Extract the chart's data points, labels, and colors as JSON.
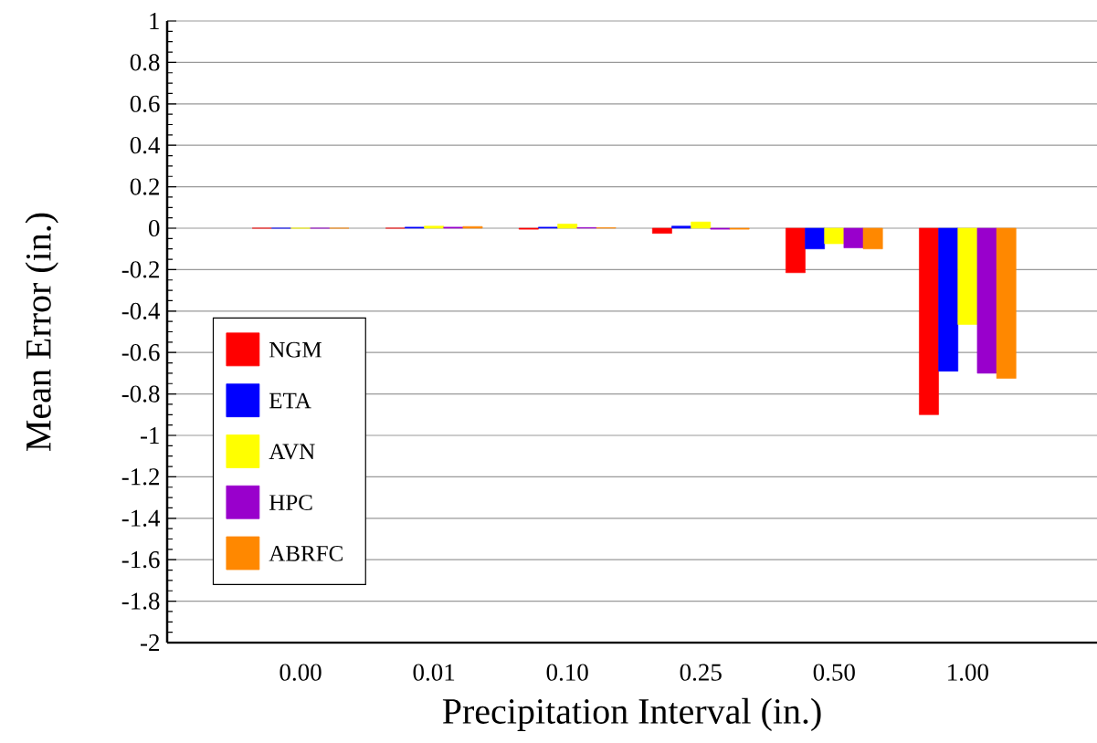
{
  "chart_data": {
    "type": "bar",
    "xlabel": "Precipitation Interval (in.)",
    "ylabel": "Mean Error (in.)",
    "categories": [
      "0.00",
      "0.01",
      "0.10",
      "0.25",
      "0.50",
      "1.00"
    ],
    "series": [
      {
        "name": "NGM",
        "color": "#ff0000",
        "values": [
          0.0,
          0.0,
          -0.005,
          -0.025,
          -0.215,
          -0.9
        ]
      },
      {
        "name": "ETA",
        "color": "#0000ff",
        "values": [
          0.0,
          0.005,
          0.005,
          0.01,
          -0.1,
          -0.69
        ]
      },
      {
        "name": "AVN",
        "color": "#ffff00",
        "values": [
          0.0,
          0.01,
          0.02,
          0.03,
          -0.075,
          -0.465
        ]
      },
      {
        "name": "HPC",
        "color": "#9900cc",
        "values": [
          0.0,
          0.005,
          0.003,
          -0.005,
          -0.095,
          -0.7
        ]
      },
      {
        "name": "ABRFC",
        "color": "#ff8800",
        "values": [
          0.0,
          0.008,
          0.002,
          -0.005,
          -0.1,
          -0.725
        ]
      }
    ],
    "ylim": [
      -2,
      1
    ],
    "yticks": [
      -2,
      -1.8,
      -1.6,
      -1.4,
      -1.2,
      -1,
      -0.8,
      -0.6,
      -0.4,
      -0.2,
      0,
      0.2,
      0.4,
      0.6,
      0.8,
      1
    ],
    "grid": "y",
    "legend": "bottom left"
  }
}
